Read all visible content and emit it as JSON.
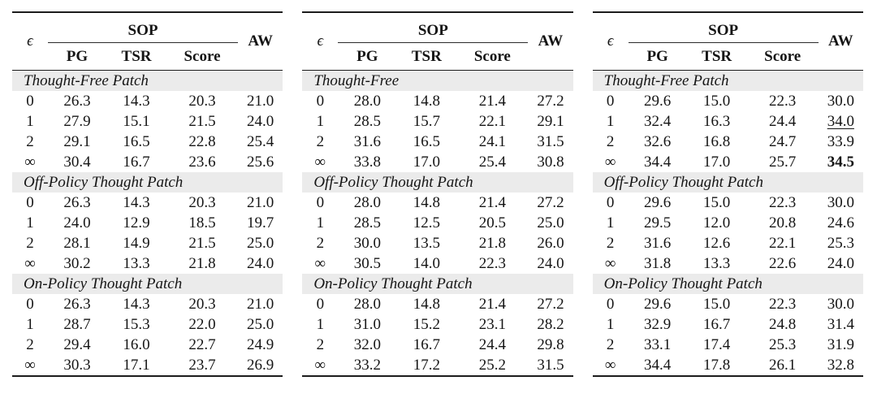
{
  "styles": {
    "rule_color": "#1c1c1c",
    "section_bg": "#ebebeb",
    "text_color": "#151515"
  },
  "tables": [
    {
      "header": {
        "eps": "ϵ",
        "group": "SOP",
        "cols": [
          "PG",
          "TSR",
          "Score"
        ],
        "aw": "AW"
      },
      "sections": [
        {
          "title": "Thought-Free Patch",
          "rows": [
            {
              "eps": "0",
              "values": [
                "26.3",
                "14.3",
                "20.3",
                "21.0"
              ]
            },
            {
              "eps": "1",
              "values": [
                "27.9",
                "15.1",
                "21.5",
                "24.0"
              ]
            },
            {
              "eps": "2",
              "values": [
                "29.1",
                "16.5",
                "22.8",
                "25.4"
              ]
            },
            {
              "eps": "∞",
              "values": [
                "30.4",
                "16.7",
                "23.6",
                "25.6"
              ]
            }
          ]
        },
        {
          "title": "Off-Policy Thought Patch",
          "rows": [
            {
              "eps": "0",
              "values": [
                "26.3",
                "14.3",
                "20.3",
                "21.0"
              ]
            },
            {
              "eps": "1",
              "values": [
                "24.0",
                "12.9",
                "18.5",
                "19.7"
              ]
            },
            {
              "eps": "2",
              "values": [
                "28.1",
                "14.9",
                "21.5",
                "25.0"
              ]
            },
            {
              "eps": "∞",
              "values": [
                "30.2",
                "13.3",
                "21.8",
                "24.0"
              ]
            }
          ]
        },
        {
          "title": "On-Policy Thought Patch",
          "rows": [
            {
              "eps": "0",
              "values": [
                "26.3",
                "14.3",
                "20.3",
                "21.0"
              ]
            },
            {
              "eps": "1",
              "values": [
                "28.7",
                "15.3",
                "22.0",
                "25.0"
              ]
            },
            {
              "eps": "2",
              "values": [
                "29.4",
                "16.0",
                "22.7",
                "24.9"
              ]
            },
            {
              "eps": "∞",
              "values": [
                "30.3",
                "17.1",
                "23.7",
                "26.9"
              ]
            }
          ]
        }
      ]
    },
    {
      "header": {
        "eps": "ϵ",
        "group": "SOP",
        "cols": [
          "PG",
          "TSR",
          "Score"
        ],
        "aw": "AW"
      },
      "sections": [
        {
          "title": "Thought-Free",
          "rows": [
            {
              "eps": "0",
              "values": [
                "28.0",
                "14.8",
                "21.4",
                "27.2"
              ]
            },
            {
              "eps": "1",
              "values": [
                "28.5",
                "15.7",
                "22.1",
                "29.1"
              ]
            },
            {
              "eps": "2",
              "values": [
                "31.6",
                "16.5",
                "24.1",
                "31.5"
              ]
            },
            {
              "eps": "∞",
              "values": [
                "33.8",
                "17.0",
                "25.4",
                "30.8"
              ]
            }
          ]
        },
        {
          "title": "Off-Policy Thought Patch",
          "rows": [
            {
              "eps": "0",
              "values": [
                "28.0",
                "14.8",
                "21.4",
                "27.2"
              ]
            },
            {
              "eps": "1",
              "values": [
                "28.5",
                "12.5",
                "20.5",
                "25.0"
              ]
            },
            {
              "eps": "2",
              "values": [
                "30.0",
                "13.5",
                "21.8",
                "26.0"
              ]
            },
            {
              "eps": "∞",
              "values": [
                "30.5",
                "14.0",
                "22.3",
                "24.0"
              ]
            }
          ]
        },
        {
          "title": "On-Policy Thought Patch",
          "rows": [
            {
              "eps": "0",
              "values": [
                "28.0",
                "14.8",
                "21.4",
                "27.2"
              ]
            },
            {
              "eps": "1",
              "values": [
                "31.0",
                "15.2",
                "23.1",
                "28.2"
              ]
            },
            {
              "eps": "2",
              "values": [
                "32.0",
                "16.7",
                "24.4",
                "29.8"
              ]
            },
            {
              "eps": "∞",
              "values": [
                "33.2",
                "17.2",
                "25.2",
                "31.5"
              ]
            }
          ]
        }
      ]
    },
    {
      "header": {
        "eps": "ϵ",
        "group": "SOP",
        "cols": [
          "PG",
          "TSR",
          "Score"
        ],
        "aw": "AW"
      },
      "sections": [
        {
          "title": "Thought-Free Patch",
          "rows": [
            {
              "eps": "0",
              "values": [
                "29.6",
                "15.0",
                "22.3",
                "30.0"
              ]
            },
            {
              "eps": "1",
              "values": [
                "32.4",
                "16.3",
                "24.4",
                {
                  "text": "34.0",
                  "style": "underline"
                }
              ]
            },
            {
              "eps": "2",
              "values": [
                "32.6",
                "16.8",
                "24.7",
                "33.9"
              ]
            },
            {
              "eps": "∞",
              "values": [
                "34.4",
                "17.0",
                "25.7",
                {
                  "text": "34.5",
                  "style": "bold"
                }
              ]
            }
          ]
        },
        {
          "title": "Off-Policy Thought Patch",
          "rows": [
            {
              "eps": "0",
              "values": [
                "29.6",
                "15.0",
                "22.3",
                "30.0"
              ]
            },
            {
              "eps": "1",
              "values": [
                "29.5",
                "12.0",
                "20.8",
                "24.6"
              ]
            },
            {
              "eps": "2",
              "values": [
                "31.6",
                "12.6",
                "22.1",
                "25.3"
              ]
            },
            {
              "eps": "∞",
              "values": [
                "31.8",
                "13.3",
                "22.6",
                "24.0"
              ]
            }
          ]
        },
        {
          "title": "On-Policy Thought Patch",
          "rows": [
            {
              "eps": "0",
              "values": [
                "29.6",
                "15.0",
                "22.3",
                "30.0"
              ]
            },
            {
              "eps": "1",
              "values": [
                "32.9",
                "16.7",
                "24.8",
                "31.4"
              ]
            },
            {
              "eps": "2",
              "values": [
                "33.1",
                "17.4",
                "25.3",
                "31.9"
              ]
            },
            {
              "eps": "∞",
              "values": [
                "34.4",
                "17.8",
                "26.1",
                "32.8"
              ]
            }
          ]
        }
      ]
    }
  ]
}
